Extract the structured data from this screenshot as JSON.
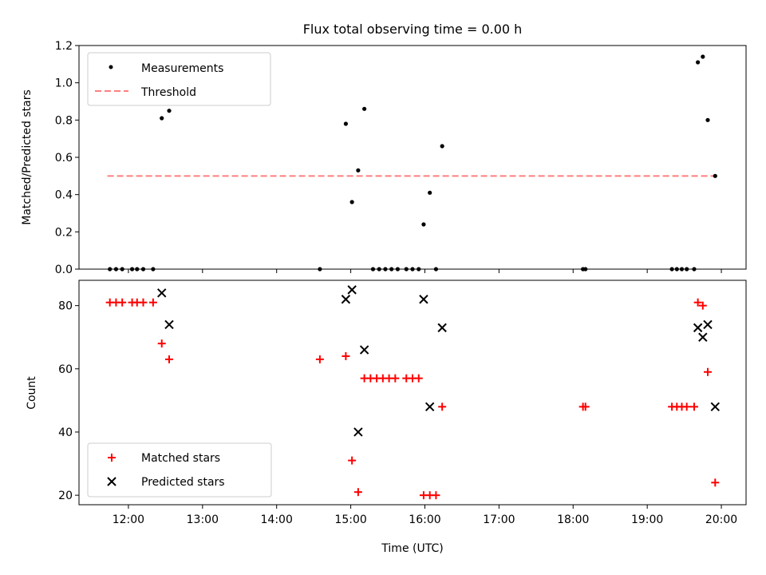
{
  "title": "Flux total observing time = 0.00 h",
  "colors": {
    "matched": "#ff0000",
    "predicted": "#000000",
    "threshold": "#ff7f7f",
    "measurement": "#000000"
  },
  "chart_data": [
    {
      "type": "scatter",
      "panel": "top",
      "ylabel": "Matched/Predicted stars",
      "ylim": [
        0,
        1.2
      ],
      "yticks": [
        "0.0",
        "0.2",
        "0.4",
        "0.6",
        "0.8",
        "1.0",
        "1.2"
      ],
      "xlim": [
        "11:20",
        "20:20"
      ],
      "legend": {
        "position": "top-left",
        "entries": [
          "Measurements",
          "Threshold"
        ]
      },
      "series": [
        {
          "name": "Measurements",
          "points": [
            [
              "11:45",
              0
            ],
            [
              "11:50",
              0
            ],
            [
              "11:55",
              0
            ],
            [
              "12:03",
              0
            ],
            [
              "12:07",
              0
            ],
            [
              "12:12",
              0
            ],
            [
              "12:20",
              0
            ],
            [
              "12:27",
              0.81
            ],
            [
              "12:33",
              0.85
            ],
            [
              "14:35",
              0
            ],
            [
              "14:56",
              0.78
            ],
            [
              "15:01",
              0.36
            ],
            [
              "15:06",
              0.53
            ],
            [
              "15:11",
              0.86
            ],
            [
              "15:18",
              0
            ],
            [
              "15:23",
              0
            ],
            [
              "15:28",
              0
            ],
            [
              "15:33",
              0
            ],
            [
              "15:38",
              0
            ],
            [
              "15:45",
              0
            ],
            [
              "15:50",
              0
            ],
            [
              "15:55",
              0
            ],
            [
              "15:59",
              0.24
            ],
            [
              "16:04",
              0.41
            ],
            [
              "16:09",
              0
            ],
            [
              "16:14",
              0.66
            ],
            [
              "18:08",
              0
            ],
            [
              "18:10",
              0
            ],
            [
              "19:20",
              0
            ],
            [
              "19:24",
              0
            ],
            [
              "19:28",
              0
            ],
            [
              "19:32",
              0
            ],
            [
              "19:38",
              0
            ],
            [
              "19:41",
              1.11
            ],
            [
              "19:45",
              1.14
            ],
            [
              "19:49",
              0.8
            ],
            [
              "19:55",
              0.5
            ]
          ]
        },
        {
          "name": "Threshold",
          "line": [
            [
              "11:43",
              0.5
            ],
            [
              "19:57",
              0.5
            ]
          ]
        }
      ]
    },
    {
      "type": "scatter",
      "panel": "bottom",
      "ylabel": "Count",
      "xlabel": "Time (UTC)",
      "ylim": [
        17,
        88
      ],
      "yticks": [
        "20",
        "40",
        "60",
        "80"
      ],
      "xlim": [
        "11:20",
        "20:20"
      ],
      "xticks": [
        "12:00",
        "13:00",
        "14:00",
        "15:00",
        "16:00",
        "17:00",
        "18:00",
        "19:00",
        "20:00"
      ],
      "legend": {
        "position": "bottom-left",
        "entries": [
          "Matched stars",
          "Predicted stars"
        ]
      },
      "series": [
        {
          "name": "Matched stars",
          "points": [
            [
              "11:45",
              81
            ],
            [
              "11:50",
              81
            ],
            [
              "11:55",
              81
            ],
            [
              "12:03",
              81
            ],
            [
              "12:07",
              81
            ],
            [
              "12:12",
              81
            ],
            [
              "12:20",
              81
            ],
            [
              "12:27",
              68
            ],
            [
              "12:33",
              63
            ],
            [
              "14:35",
              63
            ],
            [
              "14:56",
              64
            ],
            [
              "15:01",
              31
            ],
            [
              "15:06",
              21
            ],
            [
              "15:11",
              57
            ],
            [
              "15:16",
              57
            ],
            [
              "15:21",
              57
            ],
            [
              "15:26",
              57
            ],
            [
              "15:31",
              57
            ],
            [
              "15:36",
              57
            ],
            [
              "15:45",
              57
            ],
            [
              "15:50",
              57
            ],
            [
              "15:55",
              57
            ],
            [
              "15:59",
              20
            ],
            [
              "16:04",
              20
            ],
            [
              "16:09",
              20
            ],
            [
              "16:14",
              48
            ],
            [
              "18:08",
              48
            ],
            [
              "18:10",
              48
            ],
            [
              "19:20",
              48
            ],
            [
              "19:24",
              48
            ],
            [
              "19:28",
              48
            ],
            [
              "19:32",
              48
            ],
            [
              "19:38",
              48
            ],
            [
              "19:41",
              81
            ],
            [
              "19:45",
              80
            ],
            [
              "19:49",
              59
            ],
            [
              "19:55",
              24
            ]
          ]
        },
        {
          "name": "Predicted stars",
          "points": [
            [
              "12:27",
              84
            ],
            [
              "12:33",
              74
            ],
            [
              "14:56",
              82
            ],
            [
              "15:01",
              85
            ],
            [
              "15:06",
              40
            ],
            [
              "15:11",
              66
            ],
            [
              "15:59",
              82
            ],
            [
              "16:04",
              48
            ],
            [
              "16:14",
              73
            ],
            [
              "19:41",
              73
            ],
            [
              "19:45",
              70
            ],
            [
              "19:49",
              74
            ],
            [
              "19:55",
              48
            ]
          ]
        }
      ]
    }
  ]
}
